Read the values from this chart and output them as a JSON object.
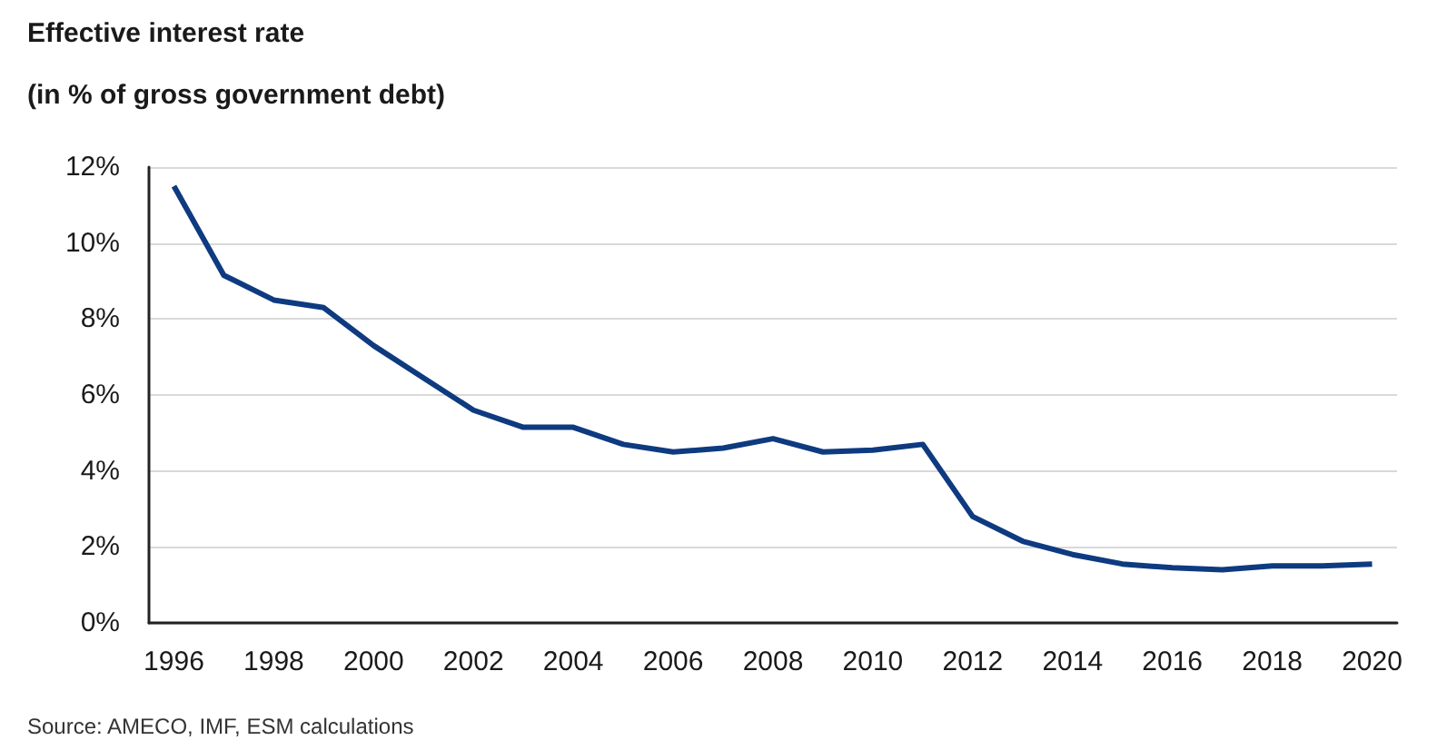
{
  "chart_data": {
    "type": "line",
    "title": "Effective interest rate",
    "subtitle": "(in % of gross government debt)",
    "categories": [
      "1996",
      null,
      "1998",
      null,
      "2000",
      null,
      "2002",
      null,
      "2004",
      null,
      "2006",
      null,
      "2008",
      null,
      "2010",
      null,
      "2012",
      null,
      "2014",
      null,
      "2016",
      null,
      "2018",
      null,
      "2020"
    ],
    "series": [
      {
        "color": "#0e3a80",
        "values": [
          11.5,
          9.15,
          8.5,
          8.3,
          7.3,
          6.45,
          5.6,
          5.15,
          5.15,
          4.7,
          4.5,
          4.6,
          4.85,
          4.5,
          4.55,
          4.7,
          2.8,
          2.15,
          1.8,
          1.55,
          1.45,
          1.4,
          1.5,
          1.5,
          1.55
        ]
      }
    ],
    "ylim": [
      0,
      12
    ],
    "yticks": [
      {
        "value": 0,
        "label": "0%"
      },
      {
        "value": 2,
        "label": "2%"
      },
      {
        "value": 4,
        "label": "4%"
      },
      {
        "value": 6,
        "label": "6%"
      },
      {
        "value": 8,
        "label": "8%"
      },
      {
        "value": 10,
        "label": "10%"
      },
      {
        "value": 12,
        "label": "12%"
      }
    ],
    "grid": "y",
    "marker": "none",
    "line_style": "solid",
    "annotations": [
      "Source: AMECO, IMF, ESM calculations"
    ]
  }
}
